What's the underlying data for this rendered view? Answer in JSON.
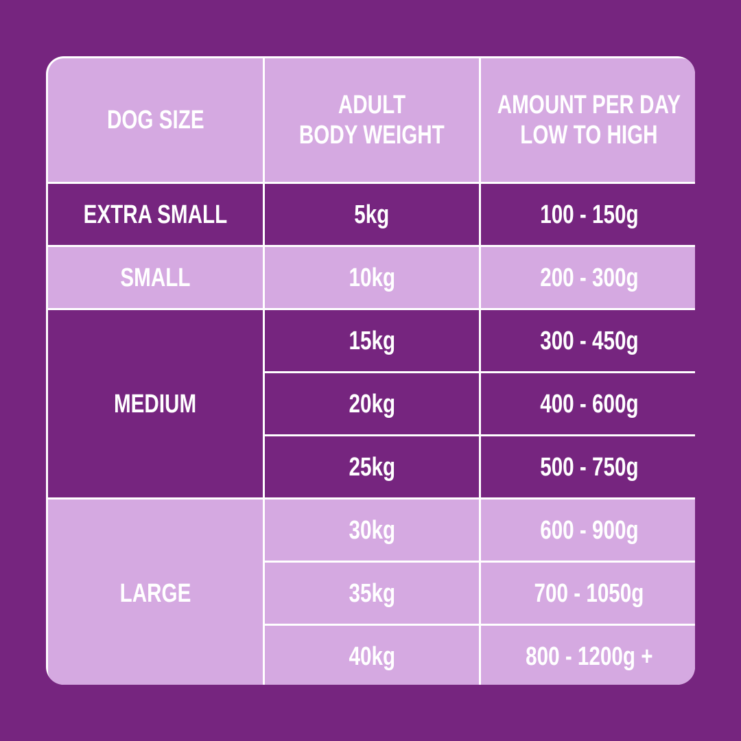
{
  "colors": {
    "background": "#76257f",
    "light_row": "#d5a9e1",
    "dark_row": "#76257f",
    "grid_lines": "#ffffff",
    "text": "#ffffff"
  },
  "header": {
    "dog_size": "DOG SIZE",
    "weight_line1": "ADULT",
    "weight_line2": "BODY WEIGHT",
    "amount_line1": "AMOUNT PER DAY",
    "amount_line2": "LOW TO HIGH"
  },
  "groups": [
    {
      "size": "EXTRA SMALL",
      "rows": [
        {
          "weight": "5kg",
          "amount": "100 - 150g"
        }
      ]
    },
    {
      "size": "SMALL",
      "rows": [
        {
          "weight": "10kg",
          "amount": "200 - 300g"
        }
      ]
    },
    {
      "size": "MEDIUM",
      "rows": [
        {
          "weight": "15kg",
          "amount": "300 - 450g"
        },
        {
          "weight": "20kg",
          "amount": "400 - 600g"
        },
        {
          "weight": "25kg",
          "amount": "500 - 750g"
        }
      ]
    },
    {
      "size": "LARGE",
      "rows": [
        {
          "weight": "30kg",
          "amount": "600 - 900g"
        },
        {
          "weight": "35kg",
          "amount": "700 - 1050g"
        },
        {
          "weight": "40kg",
          "amount": "800 - 1200g +"
        }
      ]
    }
  ]
}
